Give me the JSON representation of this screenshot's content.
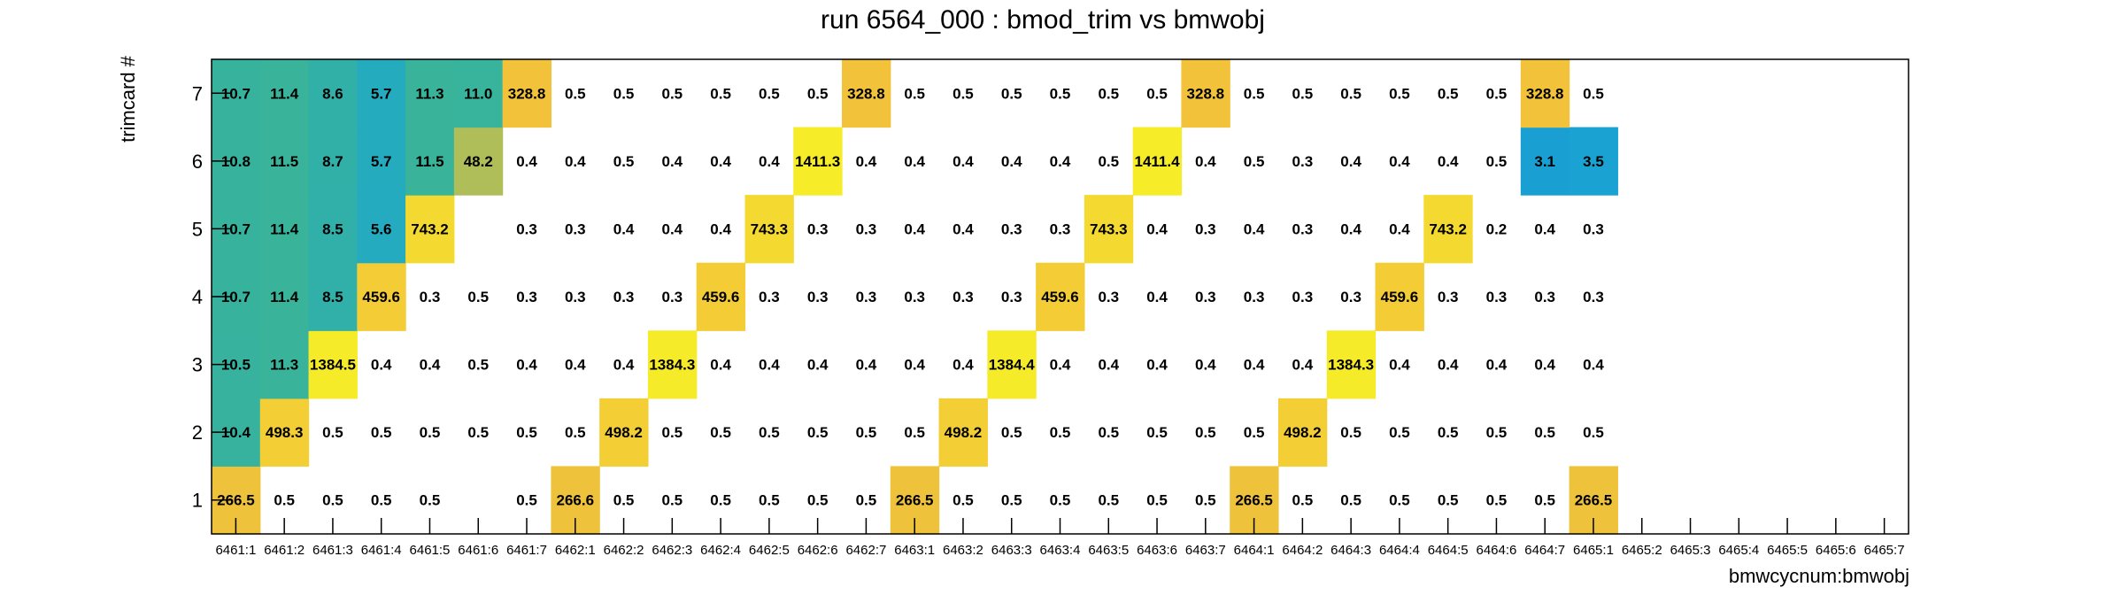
{
  "chart_data": {
    "type": "heatmap",
    "title": "run 6564_000 : bmod_trim vs bmwobj",
    "xlabel": "bmwcycnum:bmwobj",
    "ylabel": "trimcard #",
    "x_categories": [
      "6461:1",
      "6461:2",
      "6461:3",
      "6461:4",
      "6461:5",
      "6461:6",
      "6461:7",
      "6462:1",
      "6462:2",
      "6462:3",
      "6462:4",
      "6462:5",
      "6462:6",
      "6462:7",
      "6463:1",
      "6463:2",
      "6463:3",
      "6463:4",
      "6463:5",
      "6463:6",
      "6463:7",
      "6464:1",
      "6464:2",
      "6464:3",
      "6464:4",
      "6464:5",
      "6464:6",
      "6464:7",
      "6465:1",
      "6465:2",
      "6465:3",
      "6465:4",
      "6465:5",
      "6465:6",
      "6465:7"
    ],
    "y_categories": [
      "1",
      "2",
      "3",
      "4",
      "5",
      "6",
      "7"
    ],
    "cells": [
      [
        "266.5",
        "0.5",
        "0.5",
        "0.5",
        "0.5",
        "",
        "0.5",
        "266.6",
        "0.5",
        "0.5",
        "0.5",
        "0.5",
        "0.5",
        "0.5",
        "266.5",
        "0.5",
        "0.5",
        "0.5",
        "0.5",
        "0.5",
        "0.5",
        "266.5",
        "0.5",
        "0.5",
        "0.5",
        "0.5",
        "0.5",
        "0.5",
        "266.5",
        "",
        "",
        "",
        "",
        "",
        ""
      ],
      [
        "10.4",
        "498.3",
        "0.5",
        "0.5",
        "0.5",
        "0.5",
        "0.5",
        "0.5",
        "498.2",
        "0.5",
        "0.5",
        "0.5",
        "0.5",
        "0.5",
        "0.5",
        "498.2",
        "0.5",
        "0.5",
        "0.5",
        "0.5",
        "0.5",
        "0.5",
        "498.2",
        "0.5",
        "0.5",
        "0.5",
        "0.5",
        "0.5",
        "0.5",
        "",
        "",
        "",
        "",
        "",
        ""
      ],
      [
        "10.5",
        "11.3",
        "1384.5",
        "0.4",
        "0.4",
        "0.5",
        "0.4",
        "0.4",
        "0.4",
        "1384.3",
        "0.4",
        "0.4",
        "0.4",
        "0.4",
        "0.4",
        "0.4",
        "1384.4",
        "0.4",
        "0.4",
        "0.4",
        "0.4",
        "0.4",
        "0.4",
        "1384.3",
        "0.4",
        "0.4",
        "0.4",
        "0.4",
        "0.4",
        "",
        "",
        "",
        "",
        "",
        ""
      ],
      [
        "10.7",
        "11.4",
        "8.5",
        "459.6",
        "0.3",
        "0.5",
        "0.3",
        "0.3",
        "0.3",
        "0.3",
        "459.6",
        "0.3",
        "0.3",
        "0.3",
        "0.3",
        "0.3",
        "0.3",
        "459.6",
        "0.3",
        "0.4",
        "0.3",
        "0.3",
        "0.3",
        "0.3",
        "459.6",
        "0.3",
        "0.3",
        "0.3",
        "0.3",
        "",
        "",
        "",
        "",
        "",
        ""
      ],
      [
        "10.7",
        "11.4",
        "8.5",
        "5.6",
        "743.2",
        "",
        "0.3",
        "0.3",
        "0.4",
        "0.4",
        "0.4",
        "743.3",
        "0.3",
        "0.3",
        "0.4",
        "0.4",
        "0.3",
        "0.3",
        "743.3",
        "0.4",
        "0.3",
        "0.4",
        "0.3",
        "0.4",
        "0.4",
        "743.2",
        "0.2",
        "0.4",
        "0.3",
        "",
        "",
        "",
        "",
        "",
        ""
      ],
      [
        "10.8",
        "11.5",
        "8.7",
        "5.7",
        "11.5",
        "48.2",
        "0.4",
        "0.4",
        "0.5",
        "0.4",
        "0.4",
        "0.4",
        "1411.3",
        "0.4",
        "0.4",
        "0.4",
        "0.4",
        "0.4",
        "0.5",
        "1411.4",
        "0.4",
        "0.5",
        "0.3",
        "0.4",
        "0.4",
        "0.4",
        "0.5",
        "3.1",
        "3.5",
        "",
        "",
        "",
        "",
        "",
        ""
      ],
      [
        "10.7",
        "11.4",
        "8.6",
        "5.7",
        "11.3",
        "11.0",
        "328.8",
        "0.5",
        "0.5",
        "0.5",
        "0.5",
        "0.5",
        "0.5",
        "328.8",
        "0.5",
        "0.5",
        "0.5",
        "0.5",
        "0.5",
        "0.5",
        "328.8",
        "0.5",
        "0.5",
        "0.5",
        "0.5",
        "0.5",
        "0.5",
        "328.8",
        "0.5",
        "",
        "",
        "",
        "",
        "",
        ""
      ]
    ],
    "color_scale": {
      "type": "log",
      "min": 0.2,
      "max": 1411.4,
      "stops": [
        "#1e50a8",
        "#1a78d8",
        "#1aa6d2",
        "#44b886",
        "#dcc048",
        "#f2c23a",
        "#f6ec28"
      ]
    },
    "grid": false,
    "legend": "none"
  }
}
